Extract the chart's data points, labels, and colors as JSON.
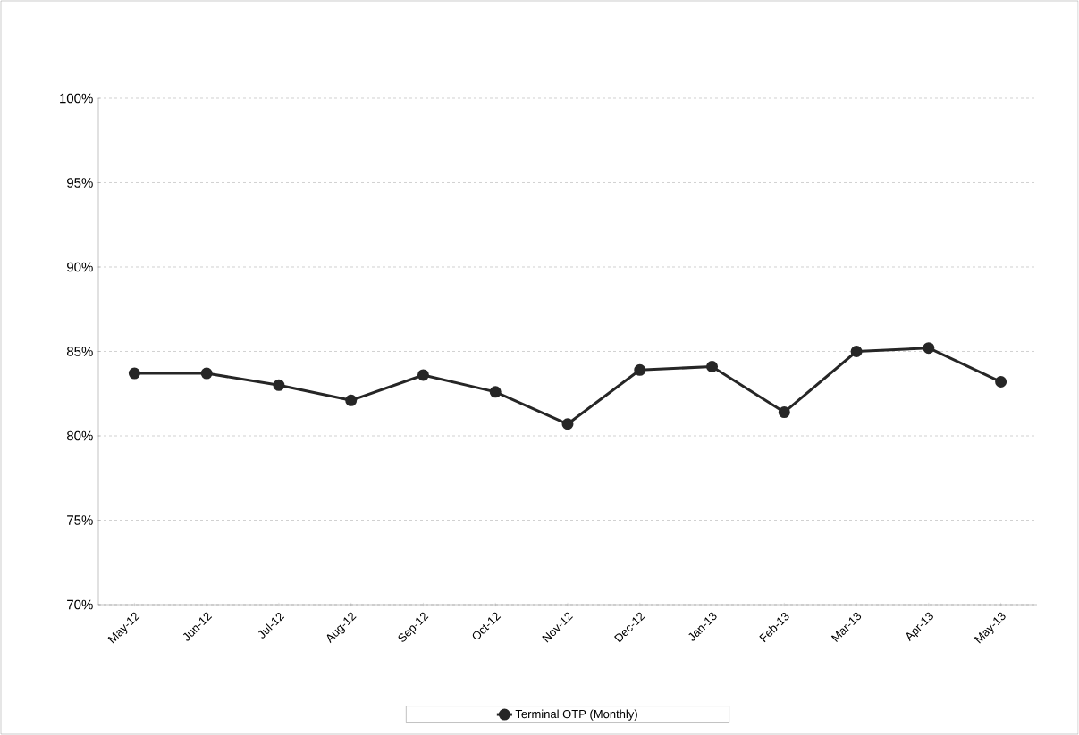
{
  "chart_data": {
    "type": "line",
    "categories": [
      "May-12",
      "Jun-12",
      "Jul-12",
      "Aug-12",
      "Sep-12",
      "Oct-12",
      "Nov-12",
      "Dec-12",
      "Jan-13",
      "Feb-13",
      "Mar-13",
      "Apr-13",
      "May-13"
    ],
    "series": [
      {
        "name": "Terminal OTP (Monthly)",
        "color": "#262626",
        "values": [
          83.7,
          83.7,
          83.0,
          82.1,
          83.6,
          82.6,
          80.7,
          83.9,
          84.1,
          81.4,
          85.0,
          85.2,
          83.2
        ]
      }
    ],
    "ylim": [
      70,
      100
    ],
    "yticks": [
      {
        "value": 70,
        "label": "70%"
      },
      {
        "value": 75,
        "label": "75%"
      },
      {
        "value": 80,
        "label": "80%"
      },
      {
        "value": 85,
        "label": "85%"
      },
      {
        "value": 90,
        "label": "90%"
      },
      {
        "value": 95,
        "label": "95%"
      },
      {
        "value": 100,
        "label": "100%"
      }
    ],
    "grid": "y",
    "legend": "bottom",
    "marker": "circle",
    "line_style": "solid"
  }
}
